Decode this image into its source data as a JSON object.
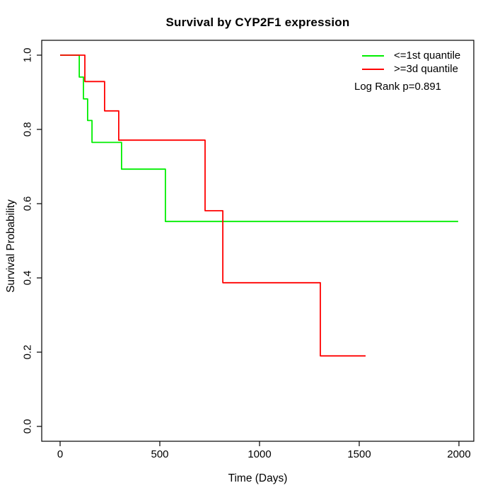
{
  "page": {
    "background": "#ffffff"
  },
  "chart_data": {
    "type": "line",
    "subtype": "kaplan-meier-step",
    "title": "Survival by CYP2F1 expression",
    "xlabel": "Time (Days)",
    "ylabel": "Survival Probability",
    "xlim": [
      0,
      2000
    ],
    "ylim": [
      0,
      1
    ],
    "x_ticks": [
      "0",
      "500",
      "1000",
      "1500",
      "2000"
    ],
    "y_ticks": [
      "0.0",
      "0.2",
      "0.4",
      "0.6",
      "0.8",
      "1.0"
    ],
    "grid": false,
    "legend_position": "top-right",
    "annotation": "Log Rank p=0.891",
    "axis_color": "#000000",
    "series": [
      {
        "name": "<=1st quantile",
        "color": "#00ee00",
        "steps": [
          [
            0,
            1.0
          ],
          [
            96,
            0.941
          ],
          [
            117,
            0.882
          ],
          [
            138,
            0.824
          ],
          [
            160,
            0.765
          ],
          [
            308,
            0.693
          ],
          [
            528,
            0.552
          ]
        ],
        "end_time": 1996
      },
      {
        "name": ">=3d quantile",
        "color": "#ff0000",
        "steps": [
          [
            0,
            1.0
          ],
          [
            124,
            0.929
          ],
          [
            223,
            0.85
          ],
          [
            294,
            0.771
          ],
          [
            727,
            0.581
          ],
          [
            816,
            0.387
          ],
          [
            1305,
            0.19
          ]
        ],
        "end_time": 1532
      }
    ]
  }
}
